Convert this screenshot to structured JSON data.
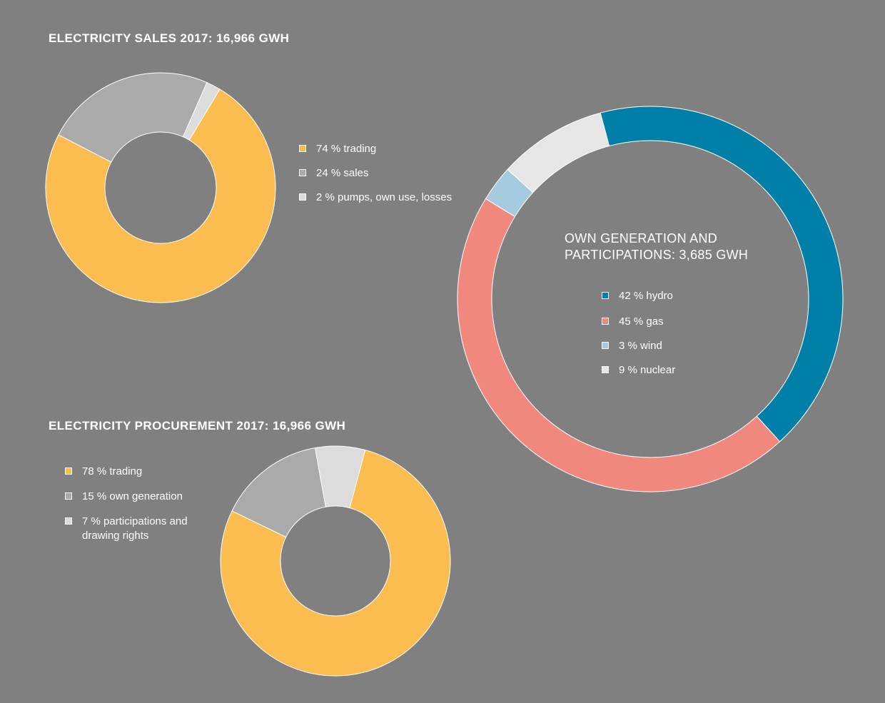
{
  "colors": {
    "background": "#808080",
    "trading": "#FBBC50",
    "sales_or_own_generation": "#AAAAAA",
    "minor_light": "#DCDCDC",
    "hydro": "#0080A8",
    "gas": "#F0887E",
    "wind": "#A6CBE0",
    "nuclear": "#E6E6E6"
  },
  "sales": {
    "title": "ELECTRICITY SALES 2017: 16,966 GWH",
    "legend": [
      "74 % trading",
      "24 % sales",
      "2 % pumps, own use, losses"
    ]
  },
  "procurement": {
    "title": "ELECTRICITY PROCUREMENT 2017: 16,966 GWH",
    "legend": [
      "78 % trading",
      "15 % own generation",
      "7 % participations and",
      "drawing rights"
    ]
  },
  "generation": {
    "title_line1": "OWN GENERATION AND",
    "title_line2": "PARTICIPATIONS: 3,685 GWH",
    "legend": [
      "42 % hydro",
      "45 % gas",
      "3 % wind",
      "9 % nuclear"
    ]
  },
  "chart_data": [
    {
      "type": "pie",
      "title": "ELECTRICITY SALES 2017: 16,966 GWH",
      "categories": [
        "trading",
        "sales",
        "pumps, own use, losses"
      ],
      "values": [
        74,
        24,
        2
      ],
      "unit": "%",
      "colors": [
        "#FBBC50",
        "#AAAAAA",
        "#DCDCDC"
      ]
    },
    {
      "type": "pie",
      "title": "ELECTRICITY PROCUREMENT 2017: 16,966 GWH",
      "categories": [
        "trading",
        "own generation",
        "participations and drawing rights"
      ],
      "values": [
        78,
        15,
        7
      ],
      "unit": "%",
      "colors": [
        "#FBBC50",
        "#AAAAAA",
        "#DCDCDC"
      ]
    },
    {
      "type": "pie",
      "title": "OWN GENERATION AND PARTICIPATIONS: 3,685 GWH",
      "categories": [
        "hydro",
        "gas",
        "wind",
        "nuclear"
      ],
      "values": [
        42,
        45,
        3,
        9
      ],
      "unit": "%",
      "colors": [
        "#0080A8",
        "#F0887E",
        "#A6CBE0",
        "#E6E6E6"
      ]
    }
  ]
}
